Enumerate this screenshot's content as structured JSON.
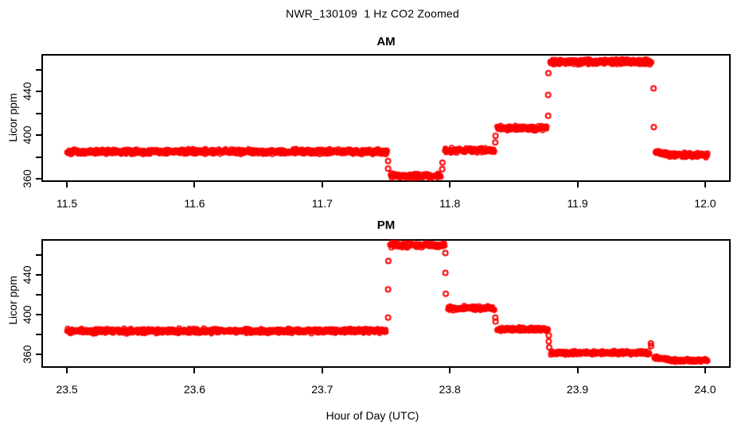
{
  "title": "NWR_130109  1 Hz CO2 Zoomed",
  "xlabel": "Hour of Day (UTC)",
  "colors": {
    "data": "#FF0000",
    "axis": "#000000",
    "background": "#FFFFFF"
  },
  "chart_data": [
    {
      "panel": "AM",
      "type": "scatter",
      "marker": "open-circle",
      "color": "#FF0000",
      "title": "AM",
      "ylabel": "Licor ppm",
      "xlim": [
        11.48,
        12.02
      ],
      "ylim": [
        357.4,
        474.5
      ],
      "x_tick_values": [
        11.5,
        11.6,
        11.7,
        11.8,
        11.9,
        12.0
      ],
      "x_tick_labels": [
        "11.5",
        "11.6",
        "11.7",
        "11.8",
        "11.9",
        "12.0"
      ],
      "y_tick_values": [
        360,
        380,
        400,
        420,
        440,
        460
      ],
      "y_tick_labels": [
        "360",
        "",
        "400",
        "",
        "440",
        ""
      ],
      "segments": [
        {
          "x0": 11.5,
          "x1": 11.751,
          "ppm": 385.0,
          "sd": 1.1
        },
        {
          "x0": 11.7535,
          "x1": 11.793,
          "ppm": 363.2,
          "sd": 1.0
        },
        {
          "x0": 11.796,
          "x1": 11.835,
          "ppm": 386.3,
          "sd": 1.1
        },
        {
          "x0": 11.837,
          "x1": 11.876,
          "ppm": 406.5,
          "sd": 1.1
        },
        {
          "x0": 11.8785,
          "x1": 11.958,
          "ppm": 467.5,
          "sd": 1.2
        },
        {
          "x0": 11.961,
          "x1": 11.973,
          "ppm": 385.0,
          "ppm_end": 382.3,
          "sd": 1.0
        },
        {
          "x0": 11.973,
          "x1": 12.002,
          "ppm": 382.0,
          "sd": 1.0
        }
      ],
      "transition_points": [
        {
          "x": 11.7516,
          "ppm": 376.5
        },
        {
          "x": 11.7516,
          "ppm": 369.5
        },
        {
          "x": 11.794,
          "ppm": 369.0
        },
        {
          "x": 11.7942,
          "ppm": 375.0
        },
        {
          "x": 11.8356,
          "ppm": 393.5
        },
        {
          "x": 11.8358,
          "ppm": 399.5
        },
        {
          "x": 11.877,
          "ppm": 418.0
        },
        {
          "x": 11.877,
          "ppm": 437.0
        },
        {
          "x": 11.8772,
          "ppm": 457.0
        },
        {
          "x": 11.9596,
          "ppm": 443.0
        },
        {
          "x": 11.9598,
          "ppm": 407.5
        }
      ]
    },
    {
      "panel": "PM",
      "type": "scatter",
      "marker": "open-circle",
      "color": "#FF0000",
      "title": "PM",
      "ylabel": "Licor ppm",
      "xlim": [
        23.48,
        24.02
      ],
      "ylim": [
        346.4,
        476.0
      ],
      "x_tick_values": [
        23.5,
        23.6,
        23.7,
        23.8,
        23.9,
        24.0
      ],
      "x_tick_labels": [
        "23.5",
        "23.6",
        "23.7",
        "23.8",
        "23.9",
        "24.0"
      ],
      "y_tick_values": [
        360,
        380,
        400,
        420,
        440,
        460
      ],
      "y_tick_labels": [
        "360",
        "",
        "400",
        "",
        "440",
        ""
      ],
      "segments": [
        {
          "x0": 23.5,
          "x1": 23.75,
          "ppm": 383.5,
          "sd": 1.1
        },
        {
          "x0": 23.753,
          "x1": 23.796,
          "ppm": 470.0,
          "sd": 1.2
        },
        {
          "x0": 23.7985,
          "x1": 23.835,
          "ppm": 406.5,
          "sd": 1.1
        },
        {
          "x0": 23.837,
          "x1": 23.877,
          "ppm": 385.0,
          "sd": 1.1
        },
        {
          "x0": 23.879,
          "x1": 23.9565,
          "ppm": 361.5,
          "sd": 1.0
        },
        {
          "x0": 23.96,
          "x1": 23.972,
          "ppm": 357.0,
          "ppm_end": 354.3,
          "sd": 0.9
        },
        {
          "x0": 23.972,
          "x1": 24.002,
          "ppm": 353.8,
          "sd": 0.9
        }
      ],
      "transition_points": [
        {
          "x": 23.7516,
          "ppm": 397.0
        },
        {
          "x": 23.7516,
          "ppm": 425.5
        },
        {
          "x": 23.7518,
          "ppm": 454.0
        },
        {
          "x": 23.7965,
          "ppm": 462.0
        },
        {
          "x": 23.7965,
          "ppm": 442.0
        },
        {
          "x": 23.7968,
          "ppm": 421.0
        },
        {
          "x": 23.8356,
          "ppm": 397.0
        },
        {
          "x": 23.8358,
          "ppm": 393.0
        },
        {
          "x": 23.8775,
          "ppm": 379.0
        },
        {
          "x": 23.8775,
          "ppm": 373.0
        },
        {
          "x": 23.8778,
          "ppm": 367.0
        },
        {
          "x": 23.9575,
          "ppm": 371.0
        },
        {
          "x": 23.9577,
          "ppm": 368.5
        }
      ]
    }
  ]
}
